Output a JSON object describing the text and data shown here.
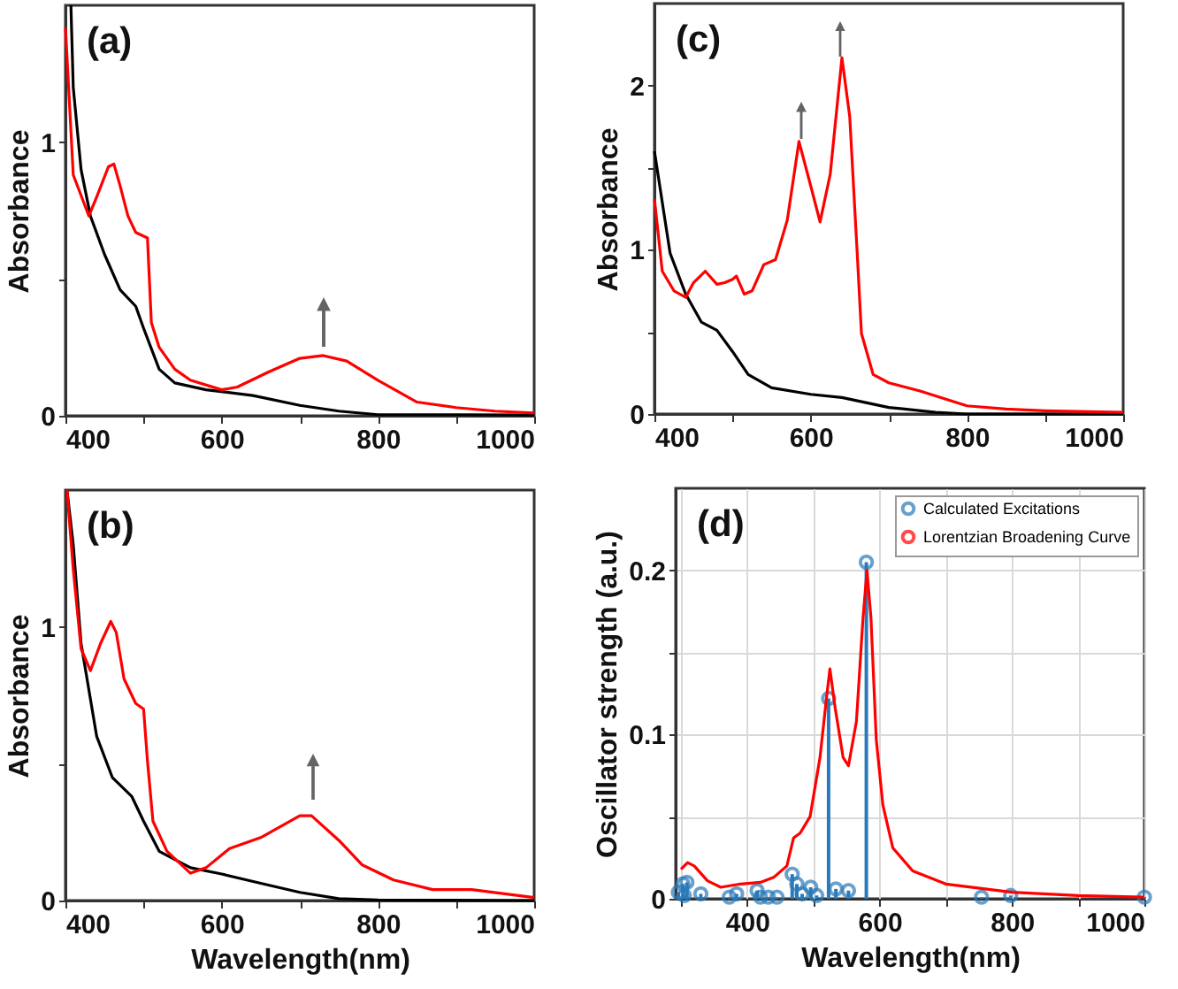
{
  "chart_data": [
    {
      "type": "line",
      "annotations": [
        "(a)"
      ],
      "ylabel": "Absorbance",
      "xlim": [
        400,
        1000
      ],
      "ylim": [
        0,
        1.5
      ],
      "xticks": [
        400,
        {
          "value": 500,
          "label": null
        },
        600,
        {
          "value": 700,
          "label": null
        },
        800,
        {
          "value": 900,
          "label": null
        },
        1000
      ],
      "yticks": [
        0,
        {
          "value": 0.5,
          "label": null
        },
        1
      ],
      "series": [
        {
          "color": "#000000",
          "x": [
            407,
            410,
            420,
            432,
            450,
            470,
            490,
            500,
            520,
            540,
            580,
            640,
            700,
            750,
            800,
            900,
            1000
          ],
          "values": [
            1.5,
            1.2,
            0.9,
            0.73,
            0.59,
            0.46,
            0.4,
            0.32,
            0.17,
            0.12,
            0.095,
            0.074,
            0.038,
            0.017,
            0.004,
            0.004,
            0.003
          ]
        },
        {
          "color": "#ff0000",
          "x": [
            400,
            410,
            430,
            440,
            455,
            462,
            470,
            480,
            490,
            505,
            510,
            520,
            540,
            560,
            600,
            620,
            660,
            700,
            730,
            760,
            800,
            850,
            900,
            950,
            1000
          ],
          "values": [
            1.42,
            0.88,
            0.73,
            0.8,
            0.91,
            0.92,
            0.84,
            0.73,
            0.67,
            0.65,
            0.34,
            0.25,
            0.17,
            0.13,
            0.095,
            0.105,
            0.16,
            0.21,
            0.22,
            0.2,
            0.13,
            0.05,
            0.03,
            0.017,
            0.01
          ]
        }
      ]
    },
    {
      "type": "line",
      "annotations": [
        "(c)"
      ],
      "ylabel": "Absorbance",
      "xlim": [
        400,
        1000
      ],
      "ylim": [
        0,
        2.5
      ],
      "xticks": [
        400,
        {
          "value": 500,
          "label": null
        },
        600,
        {
          "value": 700,
          "label": null
        },
        800,
        {
          "value": 900,
          "label": null
        },
        1000
      ],
      "yticks": [
        0,
        {
          "value": 0.5,
          "label": null
        },
        1,
        {
          "value": 1.5,
          "label": null
        },
        2
      ],
      "series": [
        {
          "color": "#000000",
          "x": [
            400,
            420,
            440,
            460,
            480,
            500,
            520,
            550,
            600,
            640,
            700,
            760,
            800,
            1000
          ],
          "values": [
            1.6,
            0.98,
            0.73,
            0.56,
            0.51,
            0.38,
            0.24,
            0.16,
            0.12,
            0.1,
            0.04,
            0.01,
            0.0,
            0.0
          ]
        },
        {
          "color": "#ff0000",
          "x": [
            400,
            410,
            425,
            440,
            450,
            465,
            480,
            490,
            500,
            505,
            515,
            525,
            540,
            555,
            570,
            585,
            600,
            612,
            625,
            640,
            650,
            660,
            665,
            680,
            700,
            740,
            800,
            850,
            900,
            1000
          ],
          "values": [
            1.31,
            0.87,
            0.75,
            0.71,
            0.8,
            0.87,
            0.79,
            0.8,
            0.82,
            0.84,
            0.73,
            0.75,
            0.91,
            0.94,
            1.18,
            1.66,
            1.39,
            1.17,
            1.46,
            2.17,
            1.81,
            0.94,
            0.49,
            0.24,
            0.19,
            0.14,
            0.05,
            0.03,
            0.02,
            0.01
          ]
        }
      ]
    },
    {
      "type": "line",
      "annotations": [
        "(b)"
      ],
      "xlabel": "Wavelength(nm)",
      "ylabel": "Absorbance",
      "xlim": [
        400,
        1000
      ],
      "ylim": [
        0,
        1.5
      ],
      "xticks": [
        400,
        {
          "value": 500,
          "label": null
        },
        600,
        {
          "value": 700,
          "label": null
        },
        800,
        {
          "value": 900,
          "label": null
        },
        1000
      ],
      "yticks": [
        0,
        {
          "value": 0.5,
          "label": null
        },
        1
      ],
      "series": [
        {
          "color": "#000000",
          "x": [
            402,
            410,
            420,
            440,
            460,
            485,
            500,
            520,
            560,
            600,
            650,
            700,
            750,
            800,
            1000
          ],
          "values": [
            1.5,
            1.3,
            0.94,
            0.6,
            0.45,
            0.38,
            0.29,
            0.18,
            0.12,
            0.097,
            0.063,
            0.03,
            0.007,
            0.002,
            0.0
          ]
        },
        {
          "color": "#ff0000",
          "x": [
            402,
            410,
            420,
            432,
            445,
            458,
            465,
            475,
            490,
            500,
            505,
            512,
            530,
            560,
            580,
            610,
            650,
            700,
            715,
            750,
            780,
            820,
            870,
            920,
            1000
          ],
          "values": [
            1.5,
            1.21,
            0.92,
            0.84,
            0.94,
            1.02,
            0.98,
            0.81,
            0.72,
            0.7,
            0.51,
            0.29,
            0.18,
            0.1,
            0.12,
            0.19,
            0.23,
            0.31,
            0.31,
            0.22,
            0.13,
            0.075,
            0.04,
            0.04,
            0.011
          ]
        }
      ]
    },
    {
      "type": "line",
      "annotations": [
        "(d)"
      ],
      "xlabel": "Wavelength(nm)",
      "ylabel": "Oscillator strength (a.u.)",
      "xlim": [
        292,
        1000
      ],
      "ylim": [
        0,
        0.25
      ],
      "xticks": [
        {
          "value": 300,
          "label": null
        },
        400,
        {
          "value": 500,
          "label": null
        },
        600,
        {
          "value": 700,
          "label": null
        },
        800,
        {
          "value": 900,
          "label": null
        },
        1000
      ],
      "yticks": [
        0,
        {
          "value": 0.05,
          "label": null
        },
        0.1,
        {
          "value": 0.15,
          "label": null
        },
        0.2
      ],
      "grid": true,
      "legend": "top right",
      "series": [
        {
          "type": "lollipop",
          "marker": "circle",
          "name": "Calculated Excitations",
          "color": "#2a7ab9",
          "x": [
            296,
            303,
            305,
            309,
            330,
            373,
            384,
            415,
            420,
            432,
            445,
            468,
            475,
            483,
            496,
            505,
            523,
            534,
            553,
            580,
            754,
            798,
            1000
          ],
          "values": [
            0.004,
            0.009,
            0.002,
            0.01,
            0.003,
            0.001,
            0.003,
            0.005,
            0.001,
            0.001,
            0.001,
            0.015,
            0.009,
            0.003,
            0.007,
            0.002,
            0.122,
            0.006,
            0.005,
            0.205,
            0.001,
            0.002,
            0.001
          ]
        },
        {
          "name": "Lorentzian Broadening Curve",
          "color": "#ff0000",
          "x": [
            300,
            310,
            320,
            340,
            360,
            390,
            420,
            440,
            460,
            470,
            480,
            495,
            510,
            520,
            525,
            533,
            545,
            553,
            565,
            575,
            581,
            587,
            595,
            605,
            620,
            650,
            700,
            800,
            900,
            1000
          ],
          "values": [
            0.018,
            0.022,
            0.02,
            0.011,
            0.007,
            0.009,
            0.01,
            0.013,
            0.02,
            0.037,
            0.04,
            0.05,
            0.086,
            0.123,
            0.14,
            0.116,
            0.086,
            0.081,
            0.108,
            0.171,
            0.2,
            0.171,
            0.097,
            0.057,
            0.031,
            0.017,
            0.009,
            0.004,
            0.002,
            0.001
          ]
        }
      ]
    }
  ]
}
